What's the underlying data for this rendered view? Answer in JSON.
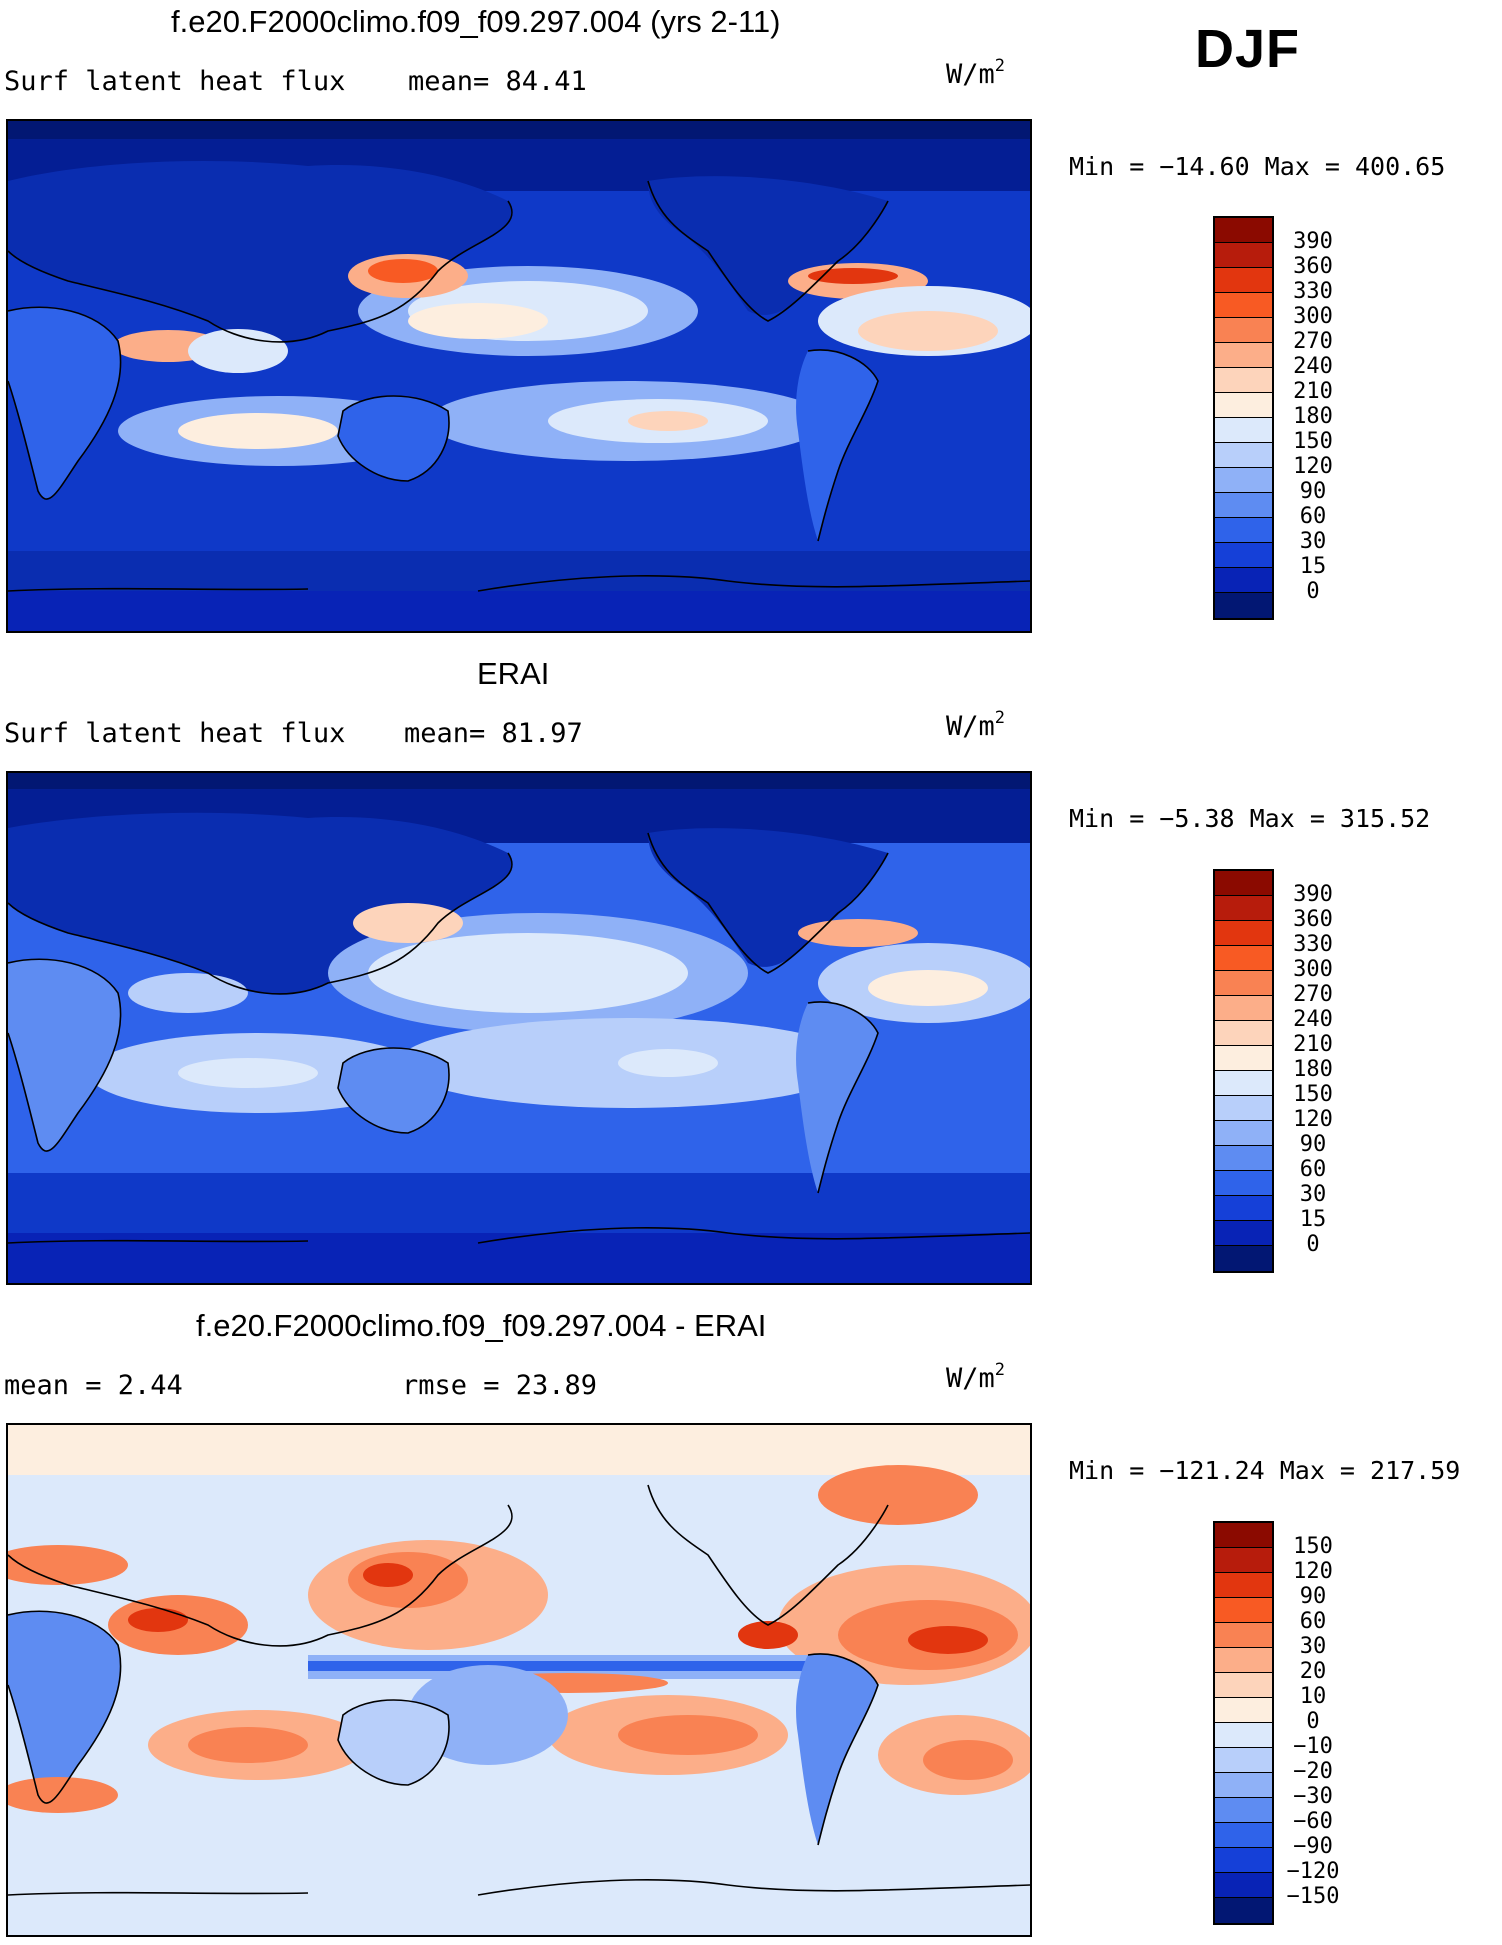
{
  "season_label": "DJF",
  "panels": [
    {
      "title": "f.e20.F2000climo.f09_f09.297.004 (yrs 2-11)",
      "left_label": "Surf  latent  heat  flux",
      "center_label": "mean=   84.41",
      "units": "W/m",
      "units_sup": "2",
      "minmax": "Min  =  −14.60  Max  =  400.65",
      "colorbar_levels": [
        "390",
        "360",
        "330",
        "300",
        "270",
        "240",
        "210",
        "180",
        "150",
        "120",
        "90",
        "60",
        "30",
        "15",
        "0"
      ],
      "colorbar_colors": [
        "#8b0a00",
        "#b71c0c",
        "#e2360f",
        "#f85a23",
        "#f98253",
        "#fcae89",
        "#fdd4bb",
        "#fdeedf",
        "#dce9fb",
        "#b8cffa",
        "#8fb1f7",
        "#5e8cf2",
        "#2f63ea",
        "#1540d8",
        "#0823b6",
        "#021773"
      ]
    },
    {
      "title": "ERAI",
      "left_label": "Surf  latent  heat  flux",
      "center_label": "mean=   81.97",
      "units": "W/m",
      "units_sup": "2",
      "minmax": "Min  =   −5.38  Max  =  315.52",
      "colorbar_levels": [
        "390",
        "360",
        "330",
        "300",
        "270",
        "240",
        "210",
        "180",
        "150",
        "120",
        "90",
        "60",
        "30",
        "15",
        "0"
      ],
      "colorbar_colors": [
        "#8b0a00",
        "#b71c0c",
        "#e2360f",
        "#f85a23",
        "#f98253",
        "#fcae89",
        "#fdd4bb",
        "#fdeedf",
        "#dce9fb",
        "#b8cffa",
        "#8fb1f7",
        "#5e8cf2",
        "#2f63ea",
        "#1540d8",
        "#0823b6",
        "#021773"
      ]
    },
    {
      "title": "f.e20.F2000climo.f09_f09.297.004 - ERAI",
      "left_label": "mean  =    2.44",
      "center_label": "rmse  =    23.89",
      "units": "W/m",
      "units_sup": "2",
      "minmax": "Min  =  −121.24  Max  =  217.59",
      "colorbar_levels": [
        "150",
        "120",
        "90",
        "60",
        "30",
        "20",
        "10",
        "0",
        "−10",
        "−20",
        "−30",
        "−60",
        "−90",
        "−120",
        "−150"
      ],
      "colorbar_colors": [
        "#8b0a00",
        "#b71c0c",
        "#e2360f",
        "#f85a23",
        "#f98253",
        "#fcae89",
        "#fdd4bb",
        "#fdeedf",
        "#dce9fb",
        "#b8cffa",
        "#8fb1f7",
        "#5e8cf2",
        "#2f63ea",
        "#1540d8",
        "#0823b6",
        "#021773"
      ]
    }
  ]
}
